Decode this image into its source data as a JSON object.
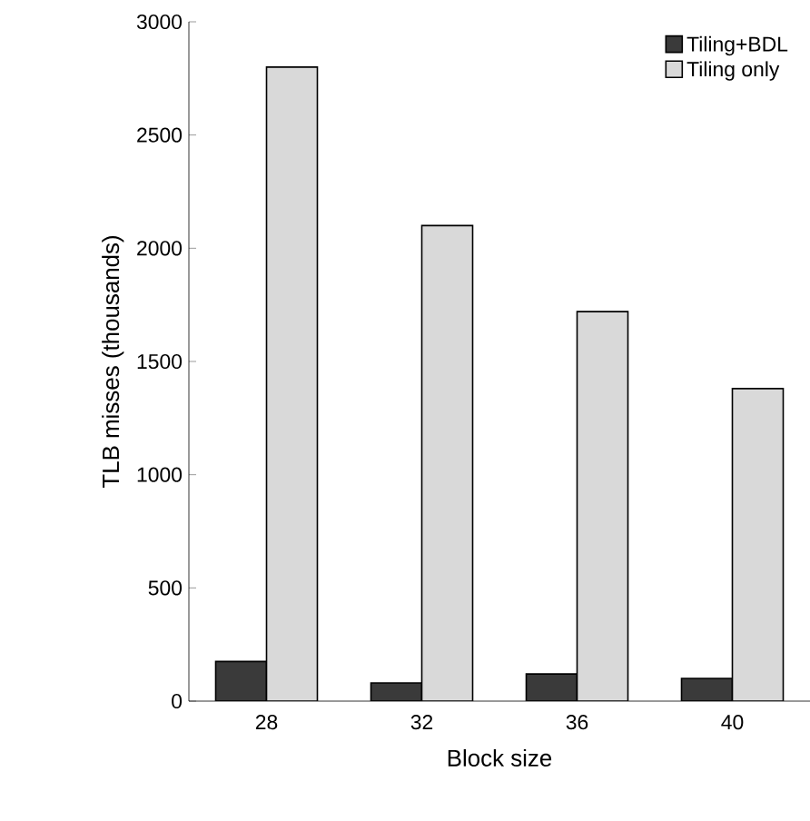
{
  "chart_data": {
    "type": "bar",
    "xlabel": "Block size",
    "ylabel": "TLB misses (thousands)",
    "categories": [
      "28",
      "32",
      "36",
      "40"
    ],
    "series": [
      {
        "name": "Tiling+BDL",
        "color": "#3a3a3a",
        "values": [
          175,
          80,
          120,
          100
        ]
      },
      {
        "name": "Tiling only",
        "color": "#d9d9d9",
        "values": [
          2800,
          2100,
          1720,
          1380
        ]
      }
    ],
    "ylim": [
      0,
      3000
    ],
    "yticks": [
      0,
      500,
      1000,
      1500,
      2000,
      2500,
      3000
    ],
    "grid": false,
    "legend": "top right"
  }
}
